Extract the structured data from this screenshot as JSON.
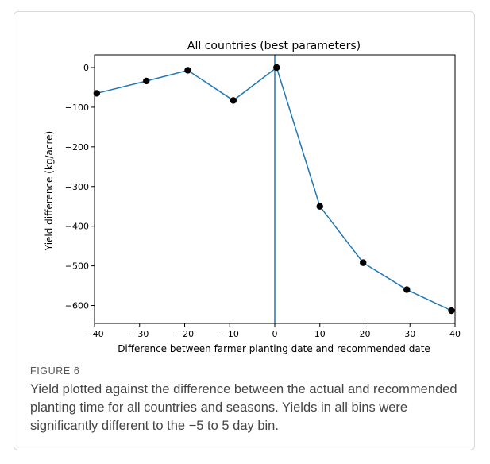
{
  "figure": {
    "label": "FIGURE 6",
    "caption": "Yield plotted against the difference between the actual and recommended planting time for all countries and seasons. Yields in all bins were significantly different to the −5 to 5 day bin."
  },
  "chart_data": {
    "type": "line",
    "title": "All countries (best parameters)",
    "xlabel": "Difference between farmer planting date and recommended date",
    "ylabel": "Yield difference (kg/acre)",
    "xlim": [
      -40,
      40
    ],
    "ylim": [
      -645,
      32
    ],
    "xticks": [
      -40,
      -30,
      -20,
      -10,
      0,
      10,
      20,
      30,
      40
    ],
    "xtick_labels": [
      "−40",
      "−30",
      "−20",
      "−10",
      "0",
      "10",
      "20",
      "30",
      "40"
    ],
    "yticks": [
      0,
      -100,
      -200,
      -300,
      -400,
      -500,
      -600
    ],
    "ytick_labels": [
      "0",
      "−100",
      "−200",
      "−300",
      "−400",
      "−500",
      "−600"
    ],
    "vline_x": 0,
    "line_color": "#1f77b4",
    "marker_color": "#000000",
    "grid": false,
    "series": [
      {
        "x": [
          -39.5,
          -28.5,
          -19.3,
          -9.2,
          0.4,
          10,
          19.6,
          29.3,
          39.2
        ],
        "y": [
          -65,
          -34,
          -7,
          -83,
          0,
          -350,
          -492,
          -560,
          -613
        ]
      }
    ]
  }
}
